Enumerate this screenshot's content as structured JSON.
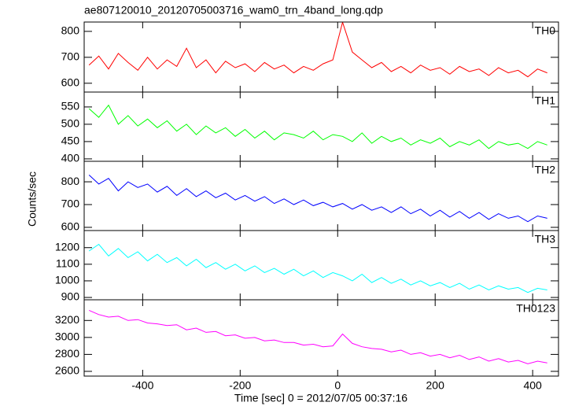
{
  "chart_data": {
    "type": "line",
    "title": "ae807120010_20120705003716_wam0_trn_4band_long.qdp",
    "xlabel": "Time [sec] 0 = 2012/07/05 00:37:16",
    "ylabel": "Counts/sec",
    "xlim": [
      -520,
      453
    ],
    "xticks": [
      -400,
      -200,
      0,
      200,
      400
    ],
    "x": [
      -510,
      -490,
      -470,
      -450,
      -430,
      -410,
      -390,
      -370,
      -350,
      -330,
      -310,
      -290,
      -270,
      -250,
      -230,
      -210,
      -190,
      -170,
      -150,
      -130,
      -110,
      -90,
      -70,
      -50,
      -30,
      -10,
      10,
      30,
      50,
      70,
      90,
      110,
      130,
      150,
      170,
      190,
      210,
      230,
      250,
      270,
      290,
      310,
      330,
      350,
      370,
      390,
      410,
      430
    ],
    "series": [
      {
        "name": "TH0",
        "color": "#ff0000",
        "ylim": [
          566,
          836
        ],
        "yticks": [
          600,
          700,
          800
        ],
        "values": [
          670,
          705,
          655,
          715,
          680,
          650,
          700,
          655,
          690,
          665,
          735,
          660,
          690,
          640,
          685,
          660,
          675,
          645,
          680,
          655,
          670,
          640,
          665,
          650,
          675,
          690,
          835,
          720,
          690,
          660,
          680,
          645,
          665,
          640,
          670,
          650,
          660,
          635,
          665,
          645,
          655,
          630,
          660,
          640,
          650,
          625,
          655,
          640
        ]
      },
      {
        "name": "TH1",
        "color": "#00ff00",
        "ylim": [
          393,
          593
        ],
        "yticks": [
          400,
          450,
          500,
          550
        ],
        "values": [
          545,
          520,
          555,
          500,
          525,
          495,
          515,
          490,
          510,
          480,
          500,
          470,
          495,
          475,
          490,
          465,
          485,
          460,
          480,
          455,
          475,
          470,
          460,
          480,
          455,
          470,
          465,
          450,
          475,
          445,
          465,
          450,
          460,
          440,
          455,
          445,
          460,
          435,
          450,
          440,
          455,
          430,
          450,
          440,
          445,
          430,
          450,
          440
        ]
      },
      {
        "name": "TH2",
        "color": "#0000ff",
        "ylim": [
          586,
          890
        ],
        "yticks": [
          600,
          700,
          800
        ],
        "values": [
          830,
          790,
          815,
          760,
          800,
          775,
          790,
          755,
          780,
          740,
          770,
          735,
          760,
          730,
          750,
          720,
          740,
          715,
          735,
          705,
          725,
          700,
          720,
          695,
          710,
          690,
          705,
          680,
          700,
          675,
          690,
          665,
          690,
          660,
          680,
          650,
          675,
          645,
          670,
          640,
          665,
          635,
          660,
          640,
          650,
          625,
          650,
          640
        ]
      },
      {
        "name": "TH3",
        "color": "#00ffff",
        "ylim": [
          886,
          1303
        ],
        "yticks": [
          900,
          1000,
          1100,
          1200
        ],
        "values": [
          1180,
          1220,
          1150,
          1195,
          1140,
          1175,
          1120,
          1160,
          1110,
          1140,
          1090,
          1130,
          1080,
          1110,
          1070,
          1100,
          1060,
          1090,
          1050,
          1075,
          1040,
          1070,
          1030,
          1060,
          1020,
          1050,
          1030,
          1000,
          1040,
          990,
          1020,
          985,
          1010,
          975,
          1000,
          970,
          990,
          960,
          985,
          950,
          975,
          945,
          970,
          950,
          960,
          930,
          955,
          945
        ]
      },
      {
        "name": "TH0123",
        "color": "#ff00ff",
        "ylim": [
          2544,
          3444
        ],
        "yticks": [
          2600,
          2800,
          3000,
          3200
        ],
        "values": [
          3320,
          3270,
          3240,
          3250,
          3200,
          3210,
          3170,
          3160,
          3140,
          3150,
          3090,
          3110,
          3060,
          3070,
          3020,
          3030,
          2990,
          3000,
          2960,
          2970,
          2940,
          2940,
          2910,
          2920,
          2890,
          2900,
          3040,
          2930,
          2890,
          2870,
          2860,
          2830,
          2850,
          2800,
          2820,
          2780,
          2800,
          2760,
          2790,
          2740,
          2770,
          2720,
          2750,
          2710,
          2730,
          2690,
          2720,
          2700
        ]
      }
    ]
  }
}
